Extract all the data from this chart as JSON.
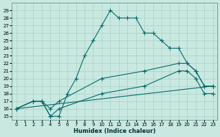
{
  "xlabel": "Humidex (Indice chaleur)",
  "bg_color": "#c8e8e0",
  "grid_color": "#a8d0c8",
  "line_color": "#006868",
  "xlim": [
    -0.5,
    23.5
  ],
  "ylim": [
    14.5,
    30.0
  ],
  "xticks": [
    0,
    1,
    2,
    3,
    4,
    5,
    6,
    7,
    8,
    9,
    10,
    11,
    12,
    13,
    14,
    15,
    16,
    17,
    18,
    19,
    20,
    21,
    22,
    23
  ],
  "yticks": [
    15,
    16,
    17,
    18,
    19,
    20,
    21,
    22,
    23,
    24,
    25,
    26,
    27,
    28,
    29
  ],
  "line1_x": [
    0,
    2,
    3,
    4,
    5,
    6,
    7,
    8,
    9,
    10,
    11,
    12,
    13,
    14,
    15,
    16,
    17,
    18,
    19,
    20,
    21,
    22,
    23
  ],
  "line1_y": [
    16,
    17,
    17,
    15,
    15,
    18,
    20,
    23,
    25,
    27,
    29,
    28,
    28,
    28,
    26,
    26,
    25,
    24,
    24,
    22,
    21,
    19,
    19
  ],
  "line2_x": [
    0,
    2,
    3,
    4,
    5,
    10,
    15,
    19,
    20,
    21,
    22,
    23
  ],
  "line2_y": [
    16,
    17,
    17,
    16,
    17,
    20,
    21,
    22,
    22,
    21,
    19,
    19
  ],
  "line3_x": [
    0,
    2,
    3,
    4,
    5,
    10,
    15,
    19,
    20,
    21,
    22,
    23
  ],
  "line3_y": [
    16,
    17,
    17,
    15,
    16,
    18,
    19,
    21,
    21,
    20,
    18,
    18
  ],
  "line4_x": [
    0,
    23
  ],
  "line4_y": [
    16,
    19
  ],
  "xlabel_fontsize": 6,
  "tick_fontsize": 5
}
